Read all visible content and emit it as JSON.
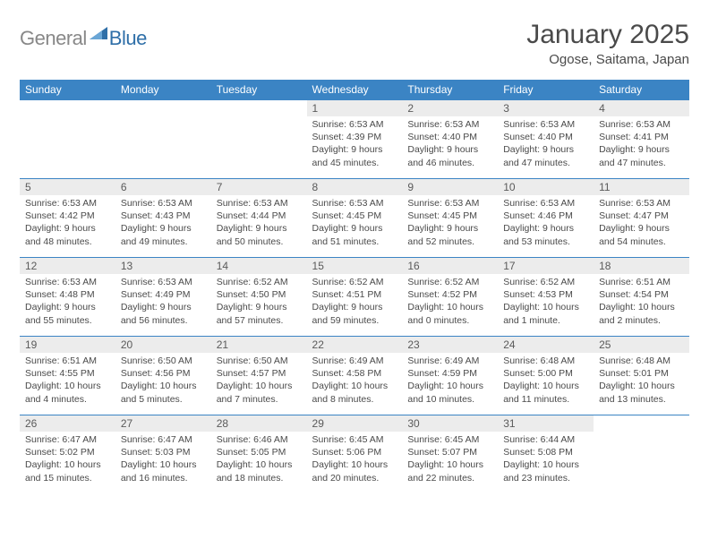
{
  "brand": {
    "part1": "General",
    "part2": "Blue"
  },
  "title": "January 2025",
  "location": "Ogose, Saitama, Japan",
  "colors": {
    "header_bg": "#3b84c4",
    "header_text": "#ffffff",
    "daynum_bg": "#ececec",
    "body_text": "#4a4a4a",
    "logo_gray": "#888888",
    "logo_blue": "#2f6fa8",
    "row_border": "#3b84c4"
  },
  "weekdays": [
    "Sunday",
    "Monday",
    "Tuesday",
    "Wednesday",
    "Thursday",
    "Friday",
    "Saturday"
  ],
  "weeks": [
    [
      null,
      null,
      null,
      {
        "n": "1",
        "sr": "6:53 AM",
        "ss": "4:39 PM",
        "dl": "9 hours and 45 minutes."
      },
      {
        "n": "2",
        "sr": "6:53 AM",
        "ss": "4:40 PM",
        "dl": "9 hours and 46 minutes."
      },
      {
        "n": "3",
        "sr": "6:53 AM",
        "ss": "4:40 PM",
        "dl": "9 hours and 47 minutes."
      },
      {
        "n": "4",
        "sr": "6:53 AM",
        "ss": "4:41 PM",
        "dl": "9 hours and 47 minutes."
      }
    ],
    [
      {
        "n": "5",
        "sr": "6:53 AM",
        "ss": "4:42 PM",
        "dl": "9 hours and 48 minutes."
      },
      {
        "n": "6",
        "sr": "6:53 AM",
        "ss": "4:43 PM",
        "dl": "9 hours and 49 minutes."
      },
      {
        "n": "7",
        "sr": "6:53 AM",
        "ss": "4:44 PM",
        "dl": "9 hours and 50 minutes."
      },
      {
        "n": "8",
        "sr": "6:53 AM",
        "ss": "4:45 PM",
        "dl": "9 hours and 51 minutes."
      },
      {
        "n": "9",
        "sr": "6:53 AM",
        "ss": "4:45 PM",
        "dl": "9 hours and 52 minutes."
      },
      {
        "n": "10",
        "sr": "6:53 AM",
        "ss": "4:46 PM",
        "dl": "9 hours and 53 minutes."
      },
      {
        "n": "11",
        "sr": "6:53 AM",
        "ss": "4:47 PM",
        "dl": "9 hours and 54 minutes."
      }
    ],
    [
      {
        "n": "12",
        "sr": "6:53 AM",
        "ss": "4:48 PM",
        "dl": "9 hours and 55 minutes."
      },
      {
        "n": "13",
        "sr": "6:53 AM",
        "ss": "4:49 PM",
        "dl": "9 hours and 56 minutes."
      },
      {
        "n": "14",
        "sr": "6:52 AM",
        "ss": "4:50 PM",
        "dl": "9 hours and 57 minutes."
      },
      {
        "n": "15",
        "sr": "6:52 AM",
        "ss": "4:51 PM",
        "dl": "9 hours and 59 minutes."
      },
      {
        "n": "16",
        "sr": "6:52 AM",
        "ss": "4:52 PM",
        "dl": "10 hours and 0 minutes."
      },
      {
        "n": "17",
        "sr": "6:52 AM",
        "ss": "4:53 PM",
        "dl": "10 hours and 1 minute."
      },
      {
        "n": "18",
        "sr": "6:51 AM",
        "ss": "4:54 PM",
        "dl": "10 hours and 2 minutes."
      }
    ],
    [
      {
        "n": "19",
        "sr": "6:51 AM",
        "ss": "4:55 PM",
        "dl": "10 hours and 4 minutes."
      },
      {
        "n": "20",
        "sr": "6:50 AM",
        "ss": "4:56 PM",
        "dl": "10 hours and 5 minutes."
      },
      {
        "n": "21",
        "sr": "6:50 AM",
        "ss": "4:57 PM",
        "dl": "10 hours and 7 minutes."
      },
      {
        "n": "22",
        "sr": "6:49 AM",
        "ss": "4:58 PM",
        "dl": "10 hours and 8 minutes."
      },
      {
        "n": "23",
        "sr": "6:49 AM",
        "ss": "4:59 PM",
        "dl": "10 hours and 10 minutes."
      },
      {
        "n": "24",
        "sr": "6:48 AM",
        "ss": "5:00 PM",
        "dl": "10 hours and 11 minutes."
      },
      {
        "n": "25",
        "sr": "6:48 AM",
        "ss": "5:01 PM",
        "dl": "10 hours and 13 minutes."
      }
    ],
    [
      {
        "n": "26",
        "sr": "6:47 AM",
        "ss": "5:02 PM",
        "dl": "10 hours and 15 minutes."
      },
      {
        "n": "27",
        "sr": "6:47 AM",
        "ss": "5:03 PM",
        "dl": "10 hours and 16 minutes."
      },
      {
        "n": "28",
        "sr": "6:46 AM",
        "ss": "5:05 PM",
        "dl": "10 hours and 18 minutes."
      },
      {
        "n": "29",
        "sr": "6:45 AM",
        "ss": "5:06 PM",
        "dl": "10 hours and 20 minutes."
      },
      {
        "n": "30",
        "sr": "6:45 AM",
        "ss": "5:07 PM",
        "dl": "10 hours and 22 minutes."
      },
      {
        "n": "31",
        "sr": "6:44 AM",
        "ss": "5:08 PM",
        "dl": "10 hours and 23 minutes."
      },
      null
    ]
  ],
  "labels": {
    "sunrise": "Sunrise:",
    "sunset": "Sunset:",
    "daylight": "Daylight:"
  }
}
